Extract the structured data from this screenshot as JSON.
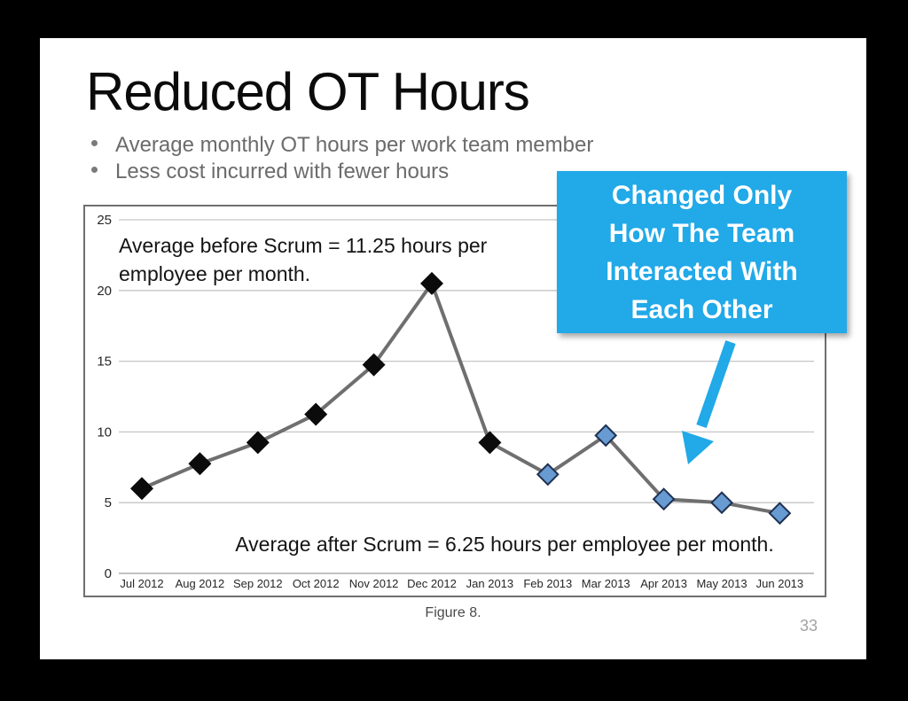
{
  "slide": {
    "title": "Reduced OT Hours",
    "bullets": [
      "Average monthly OT hours per work team member",
      "Less cost incurred with fewer hours"
    ],
    "figure_caption": "Figure 8.",
    "page_number": "33"
  },
  "callout": {
    "lines": [
      "Changed Only",
      "How The Team",
      "Interacted With",
      "Each Other"
    ],
    "fill": "#21A9E8",
    "text_color": "#FFFFFF",
    "arrow_color": "#21A9E8"
  },
  "chart_data": {
    "type": "line",
    "title": "",
    "xlabel": "",
    "ylabel": "",
    "x": [
      "Jul 2012",
      "Aug 2012",
      "Sep 2012",
      "Oct 2012",
      "Nov 2012",
      "Dec 2012",
      "Jan 2013",
      "Feb 2013",
      "Mar 2013",
      "Apr 2013",
      "May 2013",
      "Jun 2013"
    ],
    "series": [
      {
        "name": "Average monthly OT hours per work team member",
        "values": [
          6,
          7.75,
          9.25,
          11.25,
          14.75,
          20.5,
          9.25,
          7,
          9.75,
          5.25,
          5,
          4.25
        ]
      }
    ],
    "ylim": [
      0,
      25
    ],
    "yticks": [
      0,
      5,
      10,
      15,
      20,
      25
    ],
    "grid": true,
    "legend": false,
    "marker_split_index": 7,
    "line_color": "#6F6F6F",
    "grid_color": "#C6C6C6",
    "axis_color": "#9B9B9B",
    "tick_color": "#262626",
    "marker_color_before": "#0B0B0B",
    "marker_color_after": "#679BD2",
    "marker_stroke_after": "#1F3050",
    "annotations": {
      "before_line1": "Average before Scrum = 11.25 hours per",
      "before_line2": "employee per month.",
      "after": "Average after Scrum = 6.25 hours per employee per month."
    }
  }
}
